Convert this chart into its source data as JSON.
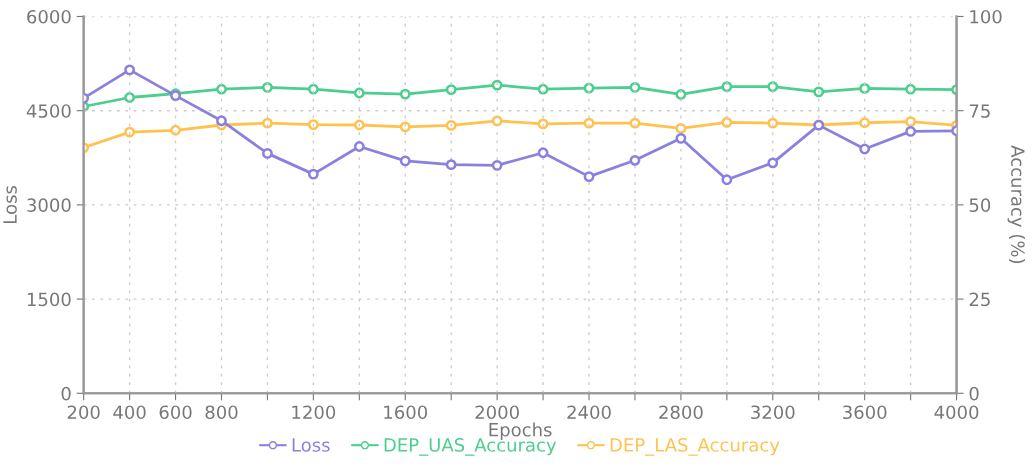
{
  "chart_data": {
    "type": "line",
    "xlabel": "Epochs",
    "ylabel": "Loss",
    "y2label": "Accuracy (%)",
    "categories": [
      "200",
      "400",
      "600",
      "800",
      null,
      "1200",
      null,
      "1600",
      null,
      "2000",
      null,
      "2400",
      null,
      "2800",
      null,
      "3200",
      null,
      "3600",
      null,
      "4000"
    ],
    "series": [
      {
        "name": "Loss",
        "color": "#8a80e0",
        "values": [
          4700,
          5150,
          4740,
          4340,
          3820,
          3490,
          3930,
          3700,
          3640,
          3630,
          3830,
          3450,
          3710,
          4060,
          3400,
          3670,
          4270,
          3890,
          4170,
          4180
        ]
      },
      {
        "name": "DEP_UAS_Accuracy",
        "color": "#4cce8e",
        "axis": "y2",
        "values": [
          76.1,
          78.5,
          79.5,
          80.7,
          81.2,
          80.7,
          79.7,
          79.4,
          80.6,
          81.8,
          80.7,
          81.0,
          81.2,
          79.3,
          81.4,
          81.4,
          80.0,
          80.9,
          80.7,
          80.6
        ]
      },
      {
        "name": "DEP_LAS_Accuracy",
        "color": "#ffc24f",
        "axis": "y2",
        "values": [
          65.2,
          69.3,
          69.8,
          71.2,
          71.7,
          71.3,
          71.2,
          70.7,
          71.1,
          72.3,
          71.5,
          71.7,
          71.7,
          70.3,
          71.9,
          71.7,
          71.2,
          71.8,
          72.1,
          71.1
        ]
      }
    ],
    "ylim": [
      0,
      6000
    ],
    "yticks": [
      0,
      1500,
      3000,
      4500,
      6000
    ],
    "y2lim": [
      0,
      100
    ],
    "y2ticks": [
      0,
      25,
      50,
      75,
      100
    ],
    "grid": true,
    "legend": "bottom",
    "marker": "circle",
    "line_style": "solid"
  }
}
